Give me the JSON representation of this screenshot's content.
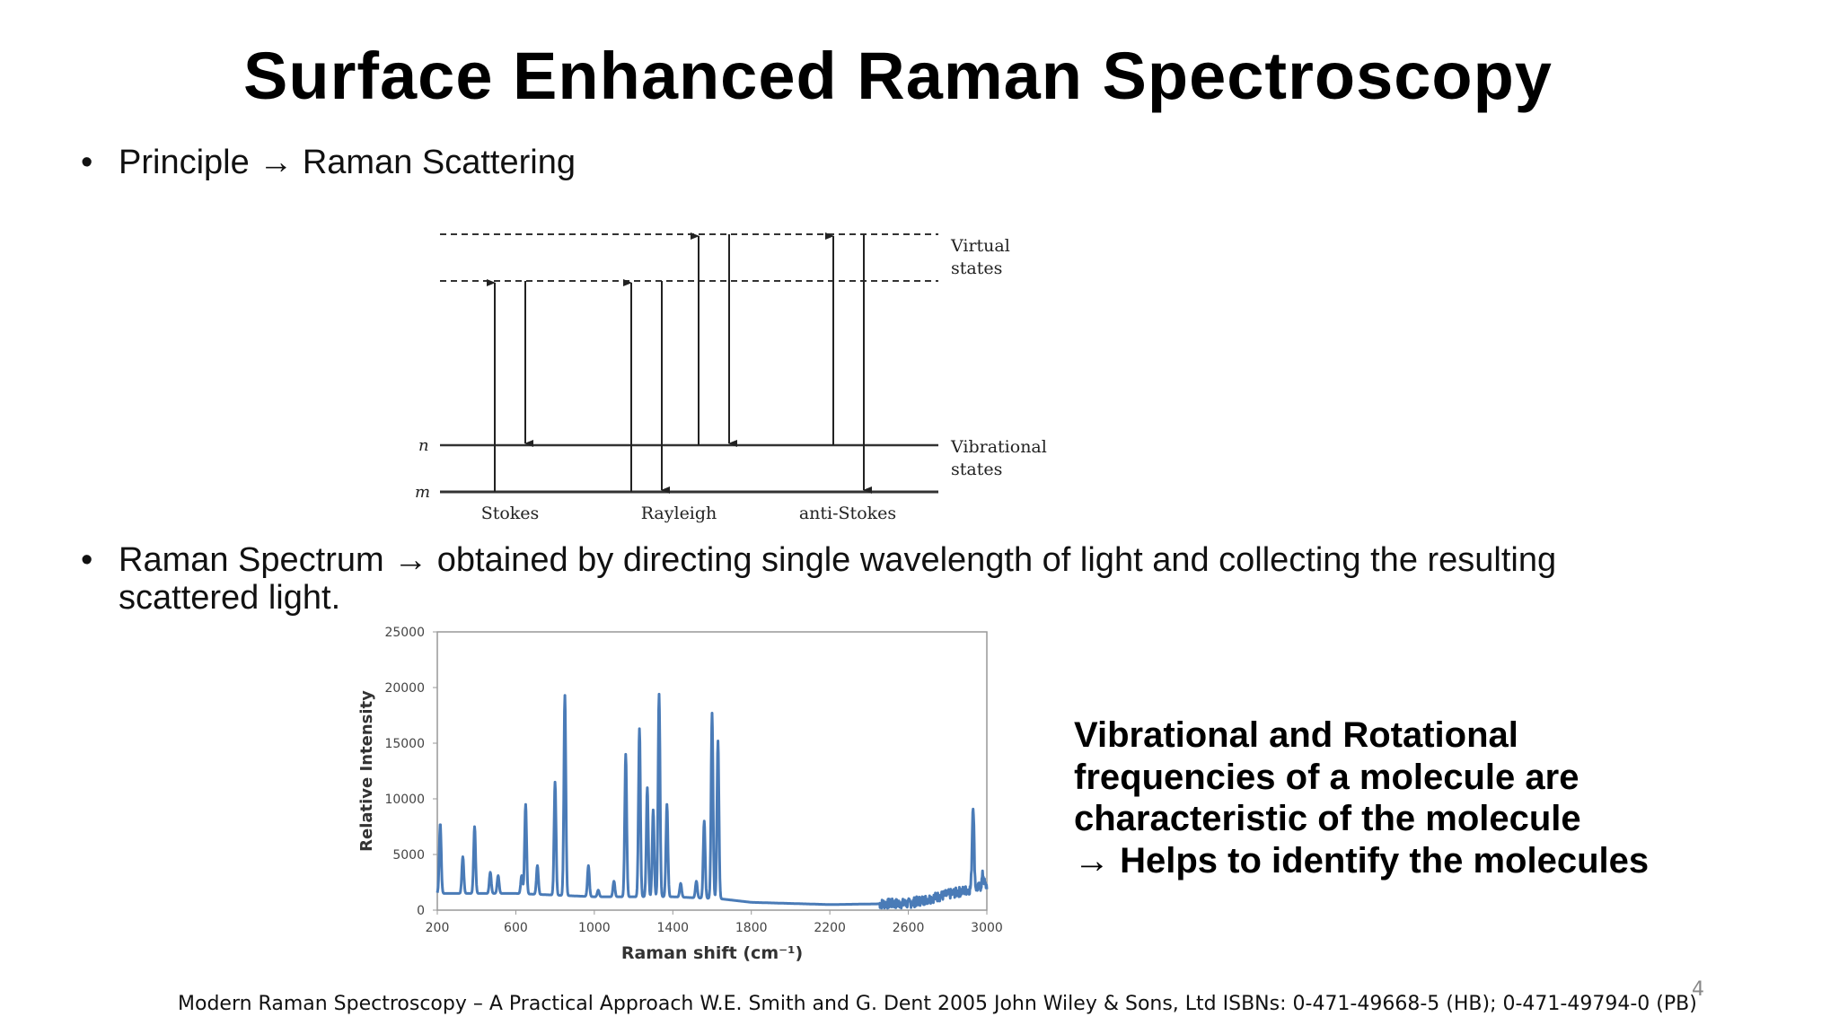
{
  "slide": {
    "title": "Surface Enhanced Raman Spectroscopy",
    "bullet1": "Principle → Raman Scattering",
    "bullet2_line1": "Raman Spectrum → obtained by directing single wavelength of light and collecting the resulting",
    "bullet2_line2": "scattered light.",
    "callout_line1": "Vibrational and Rotational",
    "callout_line2": "frequencies of a molecule are",
    "callout_line3": "characteristic of the molecule",
    "callout_line4": "→ Helps to identify the molecules",
    "footnote": "Modern Raman Spectroscopy – A Practical Approach W.E. Smith and G. Dent  2005 John Wiley & Sons, Ltd ISBNs: 0-471-49668-5 (HB); 0-471-49794-0 (PB)",
    "page_number": "4",
    "bullet_symbol": "•"
  },
  "diagram": {
    "virtual_label_1": "Virtual",
    "virtual_label_2": "states",
    "vibrational_label_1": "Vibrational",
    "vibrational_label_2": "states",
    "level_n": "n",
    "level_m": "m",
    "stokes": "Stokes",
    "rayleigh": "Rayleigh",
    "anti_stokes": "anti-Stokes"
  },
  "chart_data": {
    "type": "line",
    "title": "",
    "xlabel": "Raman shift (cm⁻¹)",
    "ylabel": "Relative Intensity",
    "xlim": [
      200,
      3000
    ],
    "ylim": [
      0,
      25000
    ],
    "xticks": [
      "200",
      "600",
      "1000",
      "1400",
      "1800",
      "2200",
      "2600",
      "3000"
    ],
    "yticks": [
      "0",
      "5000",
      "10000",
      "15000",
      "20000",
      "25000"
    ],
    "line_color": "#4a7bb7",
    "baseline": [
      [
        200,
        1500
      ],
      [
        600,
        1500
      ],
      [
        1000,
        1200
      ],
      [
        1400,
        1200
      ],
      [
        1650,
        1000
      ],
      [
        1800,
        700
      ],
      [
        2200,
        500
      ],
      [
        2600,
        600
      ],
      [
        3000,
        2200
      ]
    ],
    "peaks": [
      {
        "x": 215,
        "y": 7800
      },
      {
        "x": 330,
        "y": 4800
      },
      {
        "x": 390,
        "y": 7500
      },
      {
        "x": 470,
        "y": 3400
      },
      {
        "x": 510,
        "y": 3100
      },
      {
        "x": 630,
        "y": 3100
      },
      {
        "x": 650,
        "y": 9500
      },
      {
        "x": 710,
        "y": 4000
      },
      {
        "x": 800,
        "y": 11500
      },
      {
        "x": 850,
        "y": 19300
      },
      {
        "x": 970,
        "y": 4000
      },
      {
        "x": 1020,
        "y": 1800
      },
      {
        "x": 1100,
        "y": 2600
      },
      {
        "x": 1160,
        "y": 14000
      },
      {
        "x": 1230,
        "y": 16300
      },
      {
        "x": 1270,
        "y": 11000
      },
      {
        "x": 1300,
        "y": 9000
      },
      {
        "x": 1330,
        "y": 19400
      },
      {
        "x": 1370,
        "y": 9500
      },
      {
        "x": 1440,
        "y": 2400
      },
      {
        "x": 1520,
        "y": 2600
      },
      {
        "x": 1560,
        "y": 8000
      },
      {
        "x": 1600,
        "y": 17700
      },
      {
        "x": 1630,
        "y": 15200
      },
      {
        "x": 2930,
        "y": 9500
      },
      {
        "x": 2980,
        "y": 3200
      }
    ]
  }
}
